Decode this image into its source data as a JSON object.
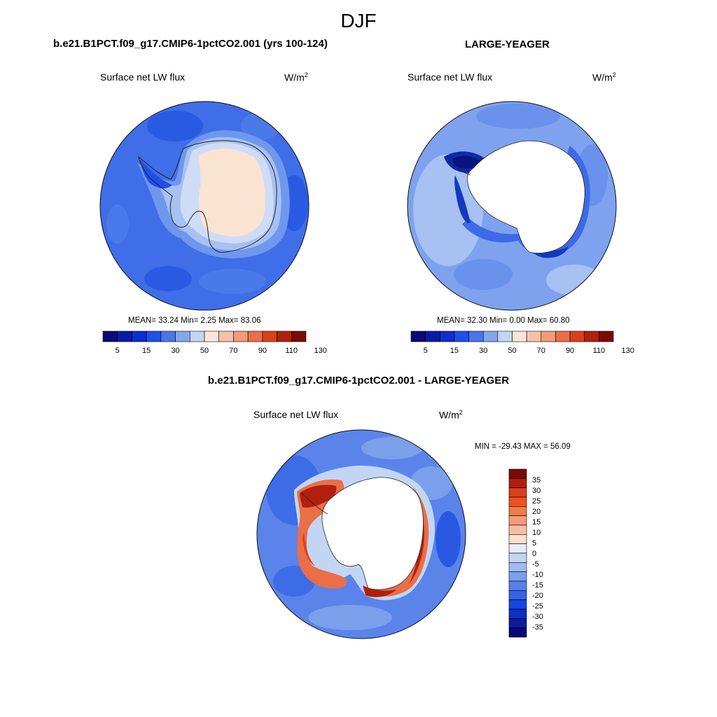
{
  "season": "DJF",
  "panels": {
    "model": {
      "title": "b.e21.B1PCT.f09_g17.CMIP6-1pctCO2.001 (yrs 100-124)",
      "variable": "Surface net LW flux",
      "units_base": "W/m",
      "units_exp": "2",
      "stats": "MEAN=  33.24  Min=   2.25  Max=  83.06"
    },
    "obs": {
      "title": "LARGE-YEAGER",
      "variable": "Surface net LW flux",
      "units_base": "W/m",
      "units_exp": "2",
      "stats": "MEAN=  32.30  Min=   0.00  Max=  60.80"
    },
    "diff": {
      "title": "b.e21.B1PCT.f09_g17.CMIP6-1pctCO2.001 - LARGE-YEAGER",
      "variable": "Surface net LW flux",
      "units_base": "W/m",
      "units_exp": "2",
      "stats": "MIN = -29.43 MAX =  56.09"
    }
  },
  "colorbars": {
    "abs_colors": [
      "#0a0a7a",
      "#0b1aa6",
      "#0c2fd0",
      "#1f4fe8",
      "#4a74ec",
      "#84a6ee",
      "#c2d6f4",
      "#fde4d6",
      "#f6c1a8",
      "#f09b7a",
      "#ea6e47",
      "#d8401c",
      "#b0200c",
      "#7a0a06"
    ],
    "abs_labels": [
      "5",
      "15",
      "30",
      "50",
      "70",
      "90",
      "110",
      "130"
    ],
    "diff_colors": [
      "#7a0a06",
      "#b0200c",
      "#d8401c",
      "#f05020",
      "#f07a48",
      "#f49c78",
      "#f8bea2",
      "#fde0d0",
      "#e4ecf6",
      "#c2d6f4",
      "#9fbcf0",
      "#7aa0ec",
      "#5680ea",
      "#3464e6",
      "#1646e0",
      "#0c2fc4",
      "#0b1c9a",
      "#08087a"
    ],
    "diff_labels": [
      "35",
      "30",
      "25",
      "20",
      "15",
      "10",
      "5",
      "0",
      "-5",
      "-10",
      "-15",
      "-20",
      "-25",
      "-30",
      "-35"
    ]
  }
}
